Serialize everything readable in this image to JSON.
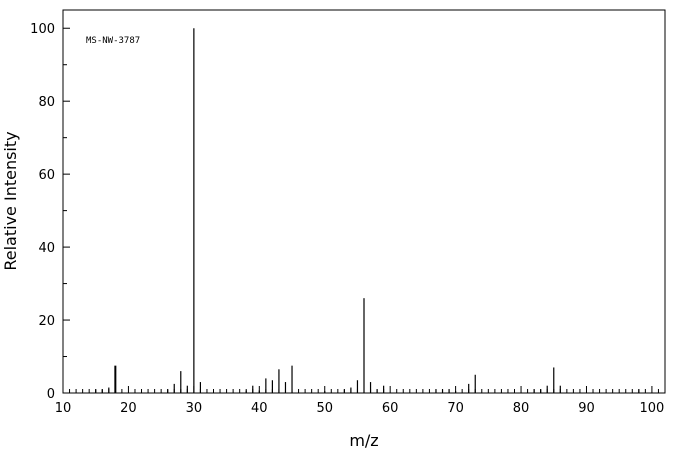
{
  "chart_data": {
    "type": "spectrum",
    "annotation": "MS-NW-3787",
    "x_label": "m/z",
    "y_label": "Relative Intensity",
    "x": [
      15,
      16,
      17,
      18,
      26,
      27,
      28,
      29,
      30,
      31,
      38,
      39,
      40,
      41,
      42,
      43,
      44,
      45,
      50,
      53,
      54,
      55,
      56,
      57,
      58,
      59,
      67,
      68,
      69,
      70,
      72,
      73,
      82,
      83,
      84,
      85,
      86,
      98
    ],
    "values": [
      1,
      1,
      1.5,
      7.5,
      1,
      2.5,
      6,
      2,
      100,
      3,
      0.7,
      2,
      0.7,
      4,
      3.5,
      6.5,
      3,
      7.5,
      0.5,
      1,
      1.5,
      3.5,
      26,
      3,
      1,
      2,
      1,
      1,
      1,
      0.5,
      2.5,
      5,
      1,
      1,
      2,
      7,
      2,
      1
    ],
    "color": "#000000",
    "xlim": [
      10,
      102
    ],
    "ylim": [
      0,
      105
    ],
    "xticks": [
      10,
      20,
      30,
      40,
      50,
      60,
      70,
      80,
      90,
      100
    ],
    "yticks": [
      0,
      20,
      40,
      60,
      80,
      100
    ]
  }
}
